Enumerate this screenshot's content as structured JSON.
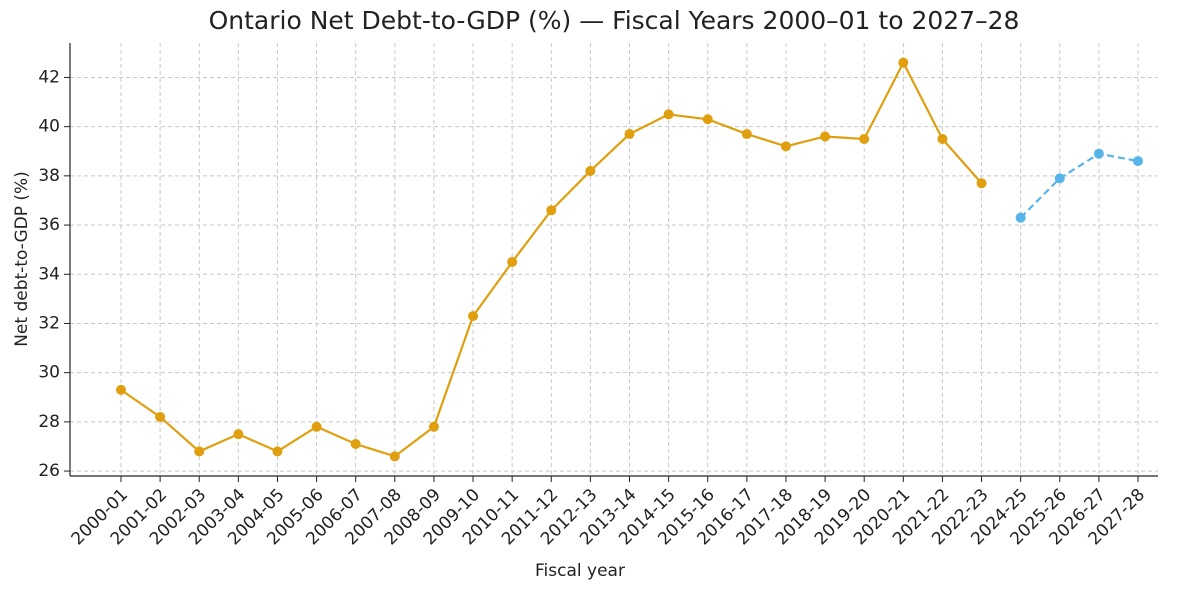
{
  "chart_data": {
    "type": "line",
    "title": "Ontario Net Debt-to-GDP (%) — Fiscal Years 2000–01 to 2027–28",
    "x_label": "Fiscal year",
    "y_label": "Net debt-to-GDP (%)",
    "categories": [
      "2000-01",
      "2001-02",
      "2002-03",
      "2003-04",
      "2004-05",
      "2005-06",
      "2006-07",
      "2007-08",
      "2008-09",
      "2009-10",
      "2010-11",
      "2011-12",
      "2012-13",
      "2013-14",
      "2014-15",
      "2015-16",
      "2016-17",
      "2017-18",
      "2018-19",
      "2019-20",
      "2020-21",
      "2021-22",
      "2022-23",
      "2024-25",
      "2025-26",
      "2026-27",
      "2027-28"
    ],
    "series": [
      {
        "color": "#e09f0f",
        "linestyle": "solid",
        "values": [
          29.3,
          28.2,
          26.8,
          27.5,
          26.8,
          27.8,
          27.1,
          26.6,
          27.8,
          32.3,
          34.5,
          36.6,
          38.2,
          39.7,
          40.5,
          40.3,
          39.7,
          39.2,
          39.6,
          39.5,
          42.6,
          39.5,
          37.7,
          null,
          null,
          null,
          null
        ]
      },
      {
        "color": "#56b4e9",
        "linestyle": "dashed",
        "values": [
          null,
          null,
          null,
          null,
          null,
          null,
          null,
          null,
          null,
          null,
          null,
          null,
          null,
          null,
          null,
          null,
          null,
          null,
          null,
          null,
          null,
          null,
          null,
          36.3,
          37.9,
          38.9,
          38.6
        ]
      }
    ],
    "ylim": [
      25.8,
      43.4
    ],
    "yticks": [
      26,
      28,
      30,
      32,
      34,
      36,
      38,
      40,
      42
    ],
    "grid": true
  }
}
